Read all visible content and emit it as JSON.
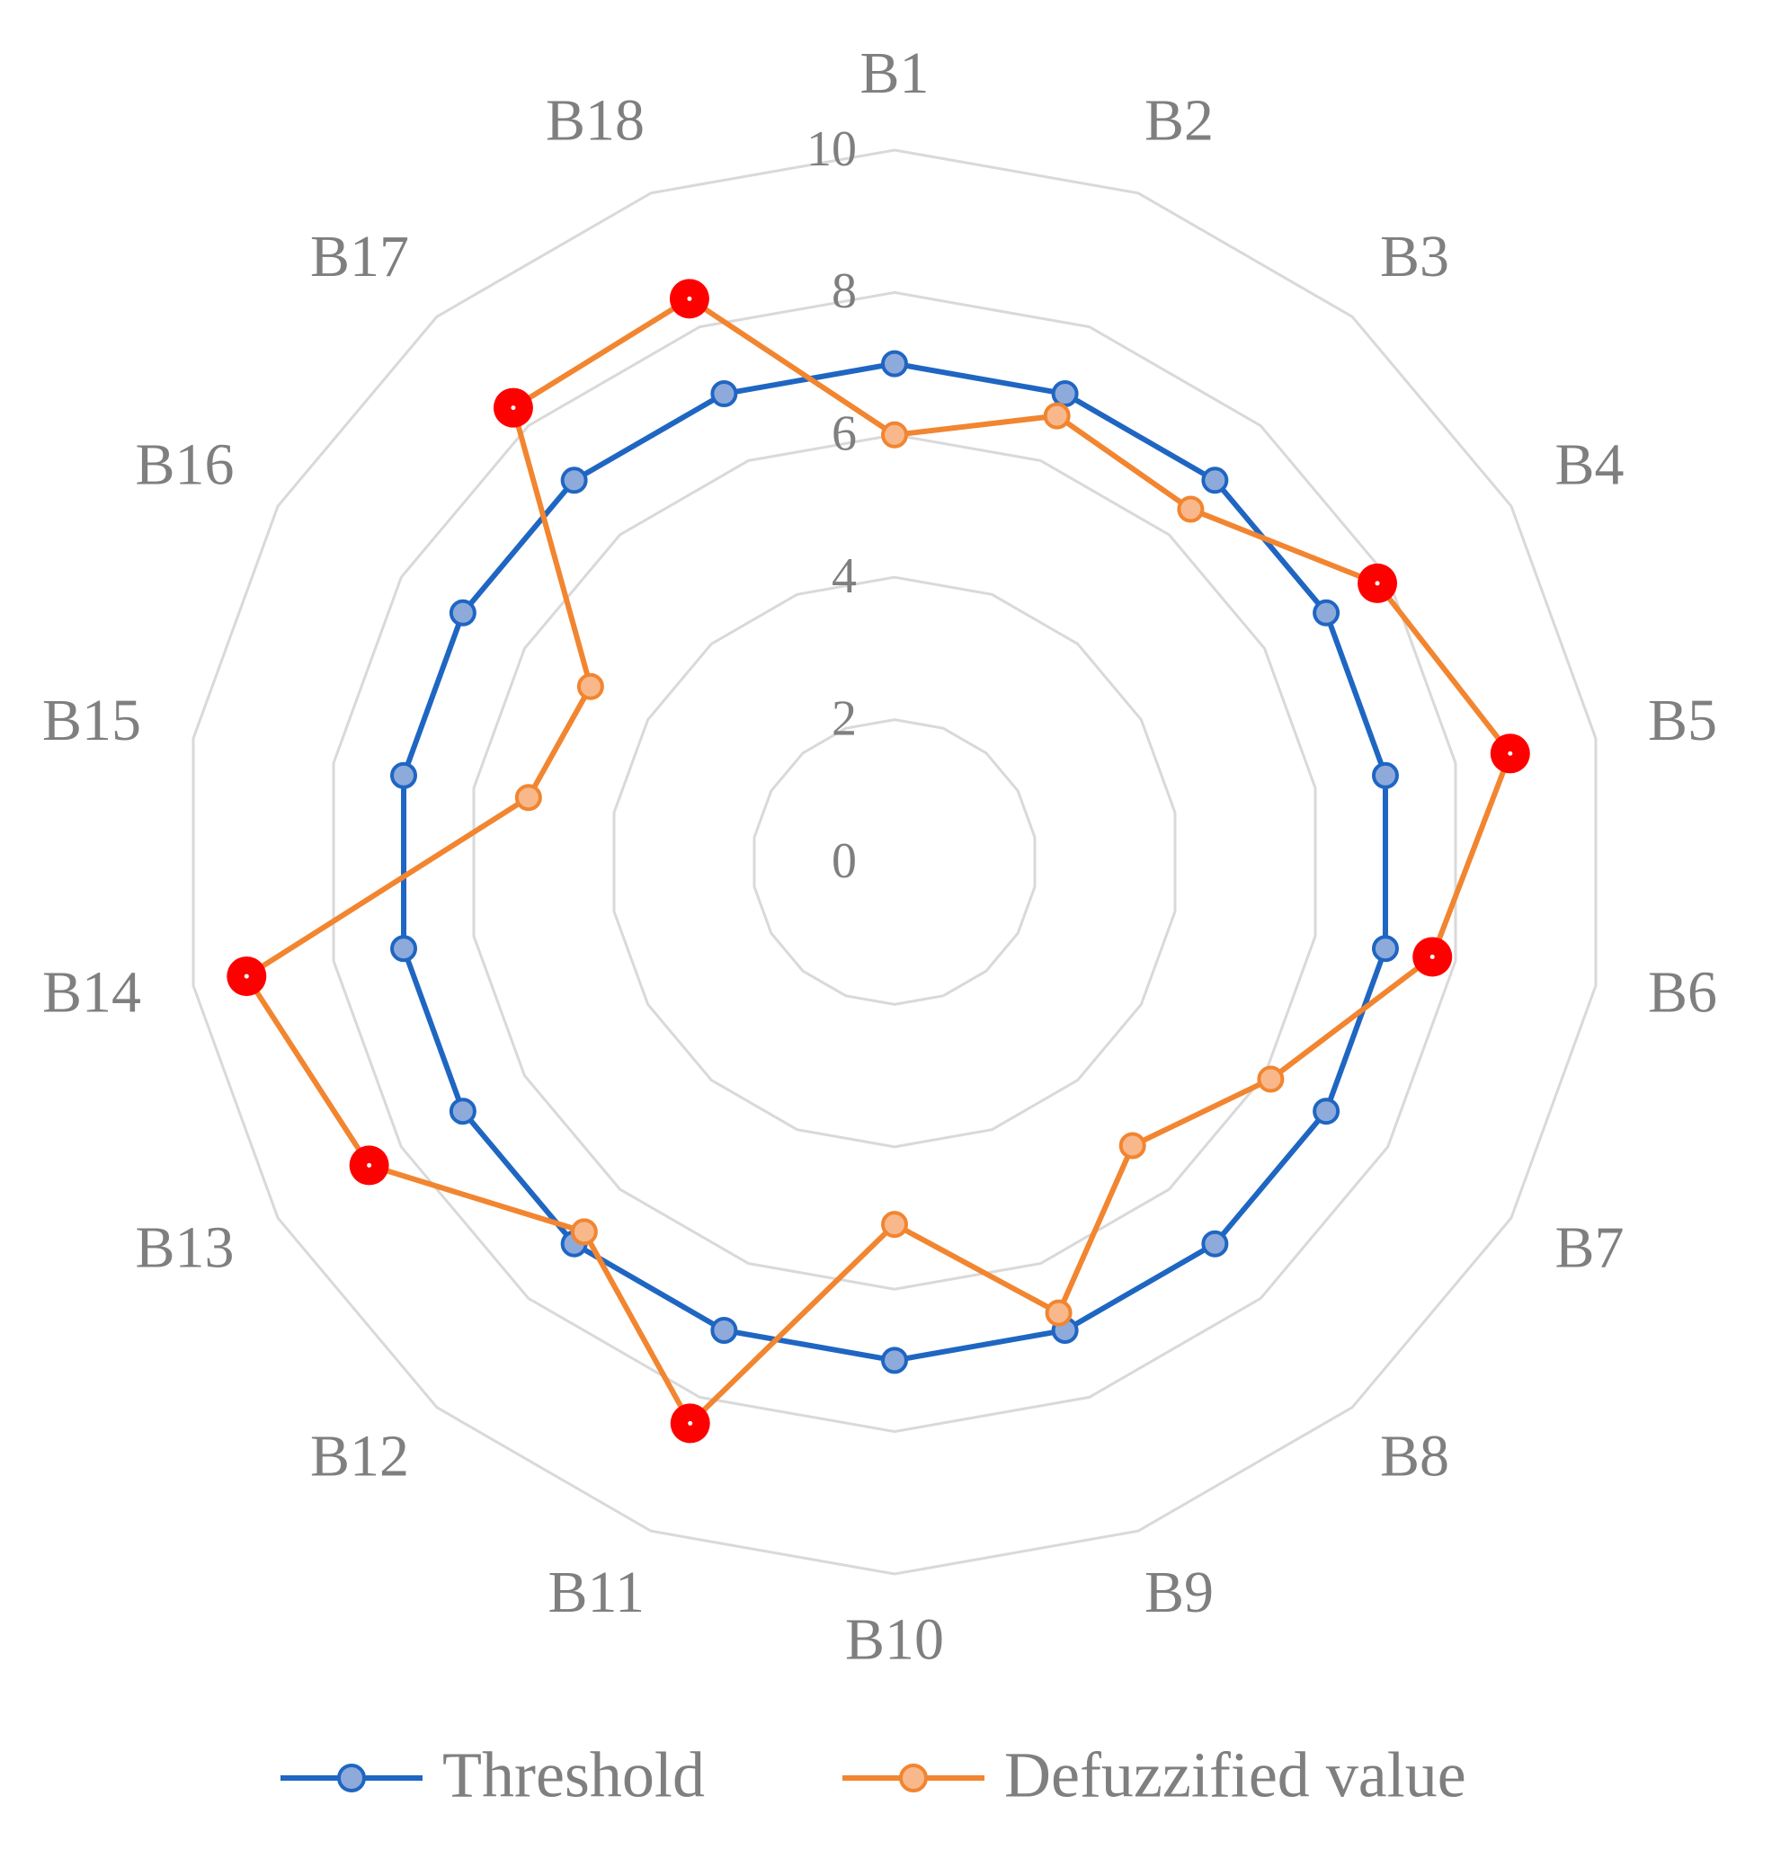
{
  "chart_data": {
    "type": "radar",
    "categories": [
      "B1",
      "B2",
      "B3",
      "B4",
      "B5",
      "B6",
      "B7",
      "B8",
      "B9",
      "B10",
      "B11",
      "B12",
      "B13",
      "B14",
      "B15",
      "B16",
      "B17",
      "B18"
    ],
    "series": [
      {
        "name": "Threshold",
        "color": "#1f66c2",
        "marker_fill": "#8eaadb",
        "values": [
          7,
          7,
          7,
          7,
          7,
          7,
          7,
          7,
          7,
          7,
          7,
          7,
          7,
          7,
          7,
          7,
          7,
          7
        ]
      },
      {
        "name": "Defuzzified value",
        "color": "#f28530",
        "marker_fill": "#f8b88b",
        "values": [
          6.0,
          6.67,
          6.47,
          7.83,
          8.78,
          7.67,
          6.1,
          5.2,
          6.74,
          5.09,
          8.39,
          6.78,
          8.52,
          9.24,
          5.22,
          4.93,
          8.33,
          8.42
        ]
      }
    ],
    "highlight_color": "#ff0000",
    "ylim": [
      0,
      10
    ],
    "yticks": [
      0,
      2,
      4,
      6,
      8,
      10
    ],
    "grid": true,
    "legend": "bottom"
  }
}
